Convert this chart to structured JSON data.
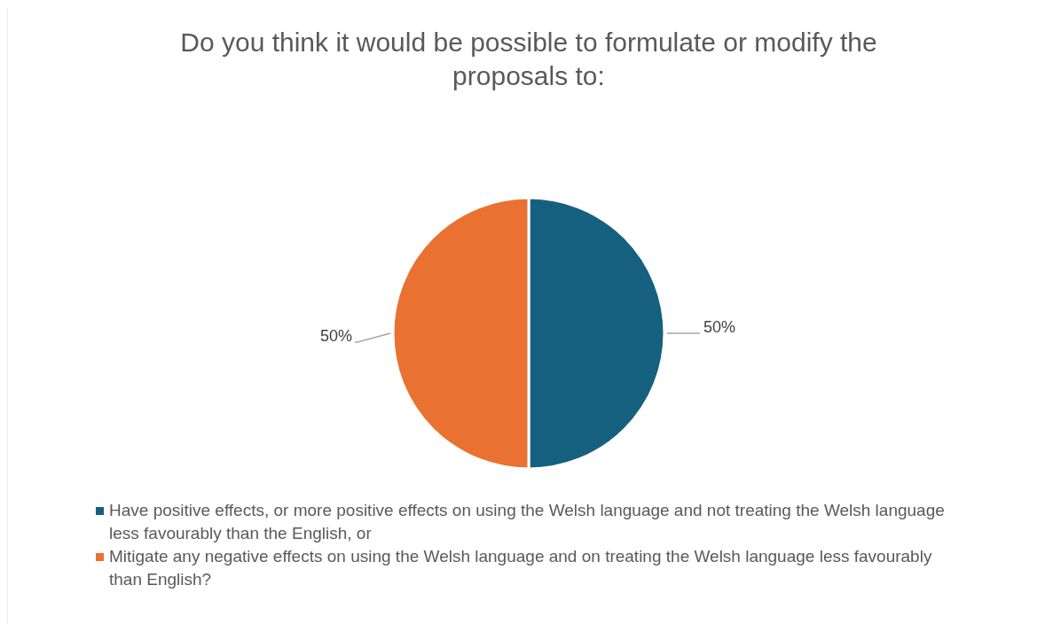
{
  "chart_data": {
    "type": "pie",
    "title": "Do you think it would be possible to formulate or modify the proposals to:",
    "categories": [
      "Have positive effects, or more positive effects on using the Welsh language and not treating the Welsh language less favourably than the English, or",
      "Mitigate any negative effects on using the Welsh language and on treating the Welsh language less favourably than English?"
    ],
    "values": [
      50,
      50
    ],
    "colors": [
      "#16607f",
      "#e97132"
    ],
    "value_labels": [
      "50%",
      "50%"
    ],
    "legend": "bottom"
  }
}
